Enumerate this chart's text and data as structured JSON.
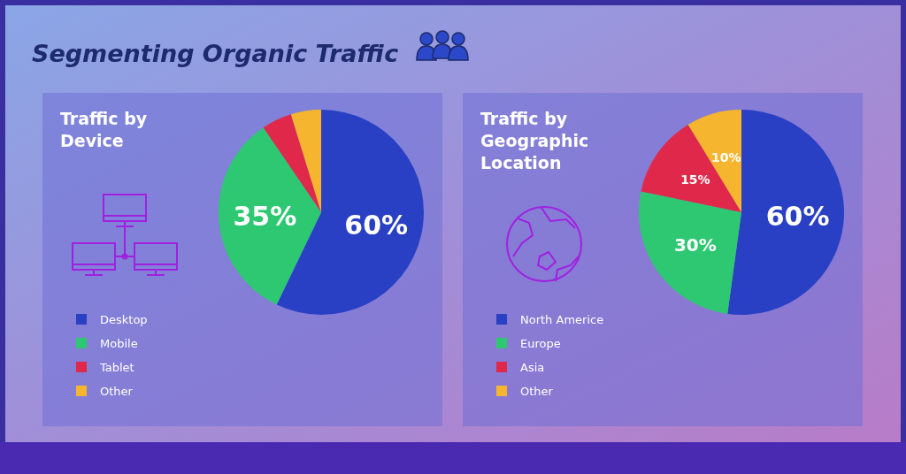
{
  "chart_data": [
    {
      "type": "pie",
      "title": "Traffic by Device",
      "annotations": [
        "Segmenting Organic Traffic"
      ],
      "categories": [
        "Desktop",
        "Mobile",
        "Tablet",
        "Other"
      ],
      "values": [
        60,
        35,
        5,
        5
      ],
      "colors": [
        "#2a40c4",
        "#2ec872",
        "#e0294a",
        "#f5b52e"
      ],
      "value_labels": [
        "60%",
        "35%",
        null,
        null
      ],
      "legend": "left"
    },
    {
      "type": "pie",
      "title": "Traffic by Geographic Location",
      "categories": [
        "North Americe",
        "Europe",
        "Asia",
        "Other"
      ],
      "values": [
        60,
        30,
        15,
        10
      ],
      "colors": [
        "#2a40c4",
        "#2ec872",
        "#e0294a",
        "#f5b52e"
      ],
      "value_labels": [
        "60%",
        "30%",
        "15%",
        "10%"
      ],
      "legend": "left"
    }
  ]
}
